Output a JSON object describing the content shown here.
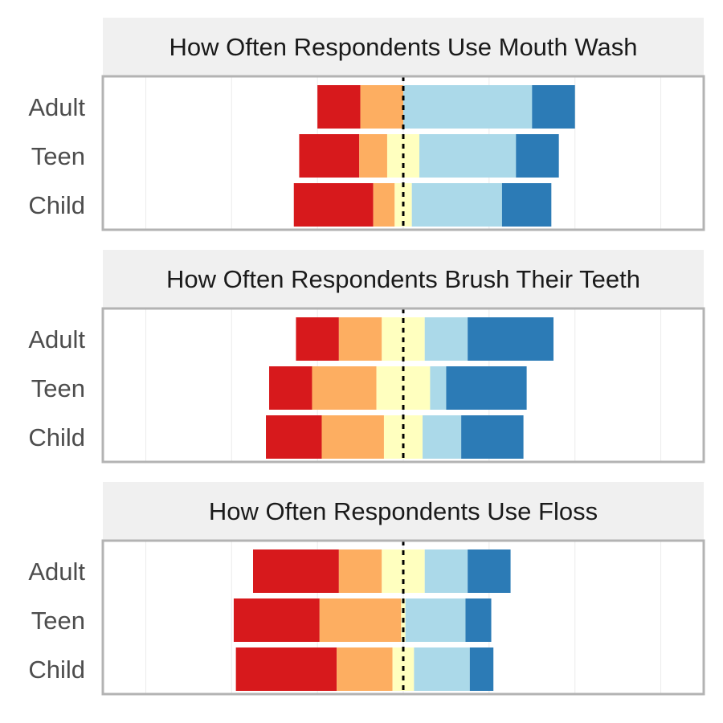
{
  "chart_data": {
    "type": "bar",
    "orientation": "horizontal",
    "stacked": "diverging",
    "xlim": [
      -7,
      7
    ],
    "grid": true,
    "legend": "none",
    "colors": [
      "#d7191c",
      "#fdae61",
      "#ffffbf",
      "#abd9e9",
      "#2c7bb6"
    ],
    "panels": [
      {
        "title": "How Often Respondents Use Mouth Wash",
        "categories": [
          "Adult",
          "Teen",
          "Child"
        ],
        "segments": [
          [
            1.0,
            1.0,
            0.0,
            3.0,
            1.0
          ],
          [
            1.4,
            0.65,
            0.75,
            2.25,
            1.0
          ],
          [
            1.85,
            0.5,
            0.4,
            2.1,
            1.15
          ]
        ]
      },
      {
        "title": "How Often Respondents Brush Their Teeth",
        "categories": [
          "Adult",
          "Teen",
          "Child"
        ],
        "segments": [
          [
            1.0,
            1.0,
            1.0,
            1.0,
            2.0
          ],
          [
            1.0,
            1.5,
            1.25,
            0.375,
            1.875
          ],
          [
            1.3,
            1.45,
            0.9,
            0.9,
            1.45
          ]
        ]
      },
      {
        "title": "How Often Respondents Use Floss",
        "categories": [
          "Adult",
          "Teen",
          "Child"
        ],
        "segments": [
          [
            2.0,
            1.0,
            1.0,
            1.0,
            1.0
          ],
          [
            2.0,
            1.9,
            0.1,
            1.4,
            0.6
          ],
          [
            2.35,
            1.3,
            0.5,
            1.3,
            0.55
          ]
        ]
      }
    ]
  }
}
